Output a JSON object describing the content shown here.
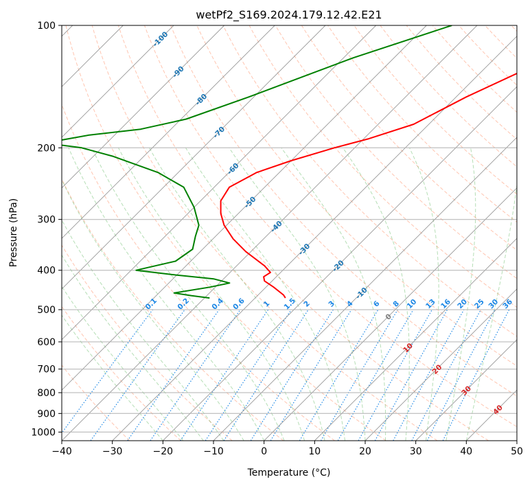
{
  "chart_data": {
    "type": "line",
    "subtype": "skew-T log-P diagram",
    "title": "wetPf2_S169.2024.179.12.42.E21",
    "xlabel": "Temperature (°C)",
    "ylabel": "Pressure (hPa)",
    "xlim": [
      -40,
      50
    ],
    "ylim": [
      1050,
      100
    ],
    "y_scale": "log",
    "grid": true,
    "xticks": [
      -40,
      -30,
      -20,
      -10,
      0,
      10,
      20,
      30,
      40,
      50
    ],
    "xtick_labels": [
      "−40",
      "−30",
      "−20",
      "−10",
      "0",
      "10",
      "20",
      "30",
      "40",
      "50"
    ],
    "yticks": [
      100,
      200,
      300,
      400,
      500,
      600,
      700,
      800,
      900,
      1000
    ],
    "ytick_labels": [
      "100",
      "200",
      "300",
      "400",
      "500",
      "600",
      "700",
      "800",
      "900",
      "1000"
    ],
    "series": [
      {
        "color": "#ff0000",
        "points": [
          {
            "p": 100,
            "t": -9
          },
          {
            "p": 120,
            "t": -19
          },
          {
            "p": 150,
            "t": -28
          },
          {
            "p": 175,
            "t": -33
          },
          {
            "p": 190,
            "t": -39
          },
          {
            "p": 200,
            "t": -44
          },
          {
            "p": 215,
            "t": -50
          },
          {
            "p": 230,
            "t": -54.5
          },
          {
            "p": 250,
            "t": -57
          },
          {
            "p": 270,
            "t": -56
          },
          {
            "p": 290,
            "t": -53.5
          },
          {
            "p": 310,
            "t": -50.5
          },
          {
            "p": 335,
            "t": -46
          },
          {
            "p": 360,
            "t": -41
          },
          {
            "p": 390,
            "t": -34.5
          },
          {
            "p": 405,
            "t": -32
          },
          {
            "p": 415,
            "t": -32.5
          },
          {
            "p": 425,
            "t": -31.5
          },
          {
            "p": 440,
            "t": -28.5
          },
          {
            "p": 460,
            "t": -25
          },
          {
            "p": 468,
            "t": -24
          }
        ]
      },
      {
        "color": "#008000",
        "points": [
          {
            "p": 100,
            "t": -45
          },
          {
            "p": 120,
            "t": -58
          },
          {
            "p": 150,
            "t": -71
          },
          {
            "p": 170,
            "t": -79
          },
          {
            "p": 180,
            "t": -86
          },
          {
            "p": 186,
            "t": -95
          },
          {
            "p": 192,
            "t": -100
          },
          {
            "p": 196,
            "t": -100
          },
          {
            "p": 200,
            "t": -94
          },
          {
            "p": 210,
            "t": -86
          },
          {
            "p": 230,
            "t": -74
          },
          {
            "p": 250,
            "t": -66
          },
          {
            "p": 280,
            "t": -60
          },
          {
            "p": 310,
            "t": -55.5
          },
          {
            "p": 330,
            "t": -54
          },
          {
            "p": 355,
            "t": -52
          },
          {
            "p": 380,
            "t": -53
          },
          {
            "p": 400,
            "t": -59
          },
          {
            "p": 410,
            "t": -51
          },
          {
            "p": 420,
            "t": -42
          },
          {
            "p": 430,
            "t": -38
          },
          {
            "p": 440,
            "t": -41
          },
          {
            "p": 455,
            "t": -47
          },
          {
            "p": 462,
            "t": -43
          },
          {
            "p": 468,
            "t": -39
          }
        ]
      }
    ],
    "isotherm_labels": [
      "-100",
      "-90",
      "-80",
      "-70",
      "-60",
      "-50",
      "-40",
      "-30",
      "-20",
      "-10",
      "0",
      "10",
      "20",
      "30",
      "40"
    ],
    "mixing_ratio_labels": [
      "0.1",
      "0.2",
      "0.4",
      "0.6",
      "1",
      "1.5",
      "2",
      "3",
      "4",
      "6",
      "8",
      "10",
      "13",
      "16",
      "20",
      "25",
      "30",
      "36"
    ],
    "colors": {
      "temperature": "#ff0000",
      "dewpoint": "#008000",
      "isotherm_cold": "#1f77b4",
      "isotherm_warm": "#d62728",
      "mixing_ratio": "#1e88e5",
      "dry_adiabat": "#ff6a3d",
      "moist_adiabat": "#4caf50",
      "grid": "#b0b0b0"
    }
  }
}
